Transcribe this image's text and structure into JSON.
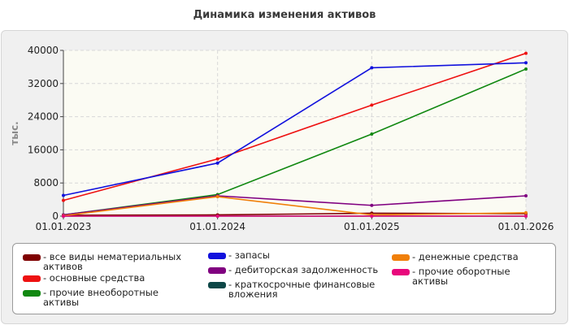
{
  "title": "Динамика изменения активов",
  "chart_data": {
    "type": "line",
    "title": "Динамика изменения активов",
    "ylabel": "тыс.",
    "xlabel": "",
    "x": [
      "01.01.2023",
      "01.01.2024",
      "01.01.2025",
      "01.01.2026"
    ],
    "yticks": [
      "0",
      "8000",
      "16000",
      "24000",
      "32000",
      "40000"
    ],
    "ylim": [
      0,
      40000
    ],
    "grid": true,
    "legend_position": "bottom",
    "series": [
      {
        "name": "- все виды нематериальных активов",
        "color": "#7f0000",
        "values": [
          200,
          300,
          700,
          600
        ]
      },
      {
        "name": "- основные средства",
        "color": "#ee1111",
        "values": [
          3800,
          13800,
          26800,
          39300
        ]
      },
      {
        "name": "- прочие внеоборотные активы",
        "color": "#118811",
        "values": [
          300,
          5200,
          19800,
          35500
        ]
      },
      {
        "name": "- запасы",
        "color": "#1111dd",
        "values": [
          5000,
          12800,
          35800,
          37000
        ]
      },
      {
        "name": "- дебиторская задолженность",
        "color": "#800080",
        "values": [
          300,
          4900,
          2600,
          4900
        ]
      },
      {
        "name": "- краткосрочные финансовые вложения",
        "color": "#0d4747",
        "values": [
          0,
          0,
          0,
          0
        ]
      },
      {
        "name": "- денежные средства",
        "color": "#f07f09",
        "values": [
          100,
          4700,
          300,
          800
        ]
      },
      {
        "name": "- прочие оборотные активы",
        "color": "#e8087c",
        "values": [
          0,
          0,
          0,
          0
        ]
      }
    ]
  }
}
